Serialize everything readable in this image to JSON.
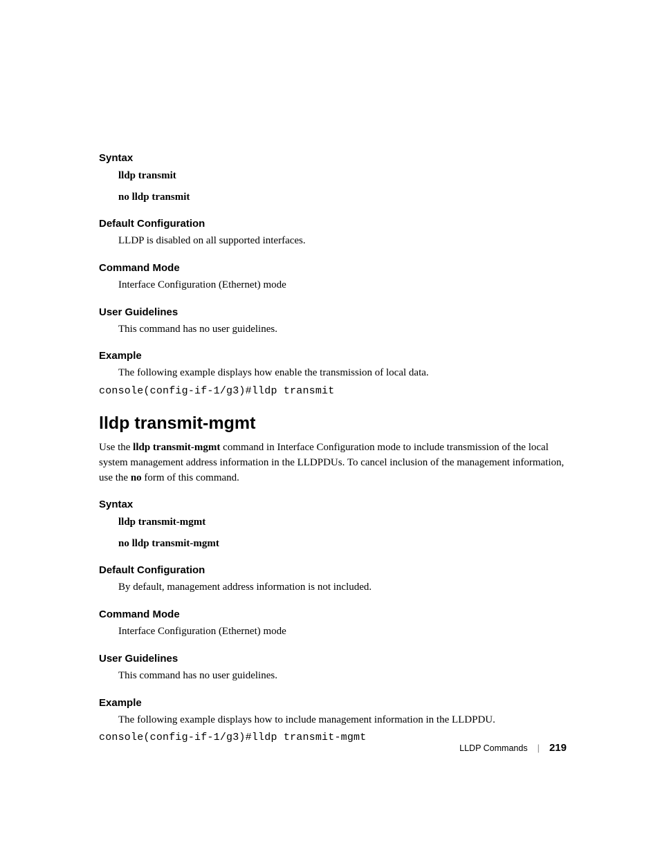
{
  "section1": {
    "syntax": {
      "heading": "Syntax",
      "line1": "lldp transmit",
      "line2": "no lldp transmit"
    },
    "default_config": {
      "heading": "Default Configuration",
      "text": "LLDP is disabled on all supported interfaces."
    },
    "command_mode": {
      "heading": "Command Mode",
      "text": "Interface Configuration (Ethernet) mode"
    },
    "user_guidelines": {
      "heading": "User Guidelines",
      "text": "This command has no user guidelines."
    },
    "example": {
      "heading": "Example",
      "text": "The following example displays how enable the transmission of local data.",
      "code": "console(config-if-1/g3)#lldp transmit"
    }
  },
  "main_heading": "lldp transmit-mgmt",
  "main_body_pre": "Use the ",
  "main_body_bold1": "lldp transmit-mgmt",
  "main_body_mid": " command in Interface Configuration mode to include transmission of the local system management address information in the LLDPDUs. To cancel inclusion of the management information, use the ",
  "main_body_bold2": "no",
  "main_body_post": " form of this command.",
  "section2": {
    "syntax": {
      "heading": "Syntax",
      "line1": "lldp transmit-mgmt",
      "line2": "no lldp transmit-mgmt"
    },
    "default_config": {
      "heading": "Default Configuration",
      "text": "By default, management address information is not included."
    },
    "command_mode": {
      "heading": "Command Mode",
      "text": "Interface Configuration (Ethernet) mode"
    },
    "user_guidelines": {
      "heading": "User Guidelines",
      "text": "This command has no user guidelines."
    },
    "example": {
      "heading": "Example",
      "text": "The following example displays how to include management information in the LLDPDU.",
      "code": "console(config-if-1/g3)#lldp transmit-mgmt"
    }
  },
  "footer": {
    "label": "LLDP Commands",
    "page": "219"
  }
}
